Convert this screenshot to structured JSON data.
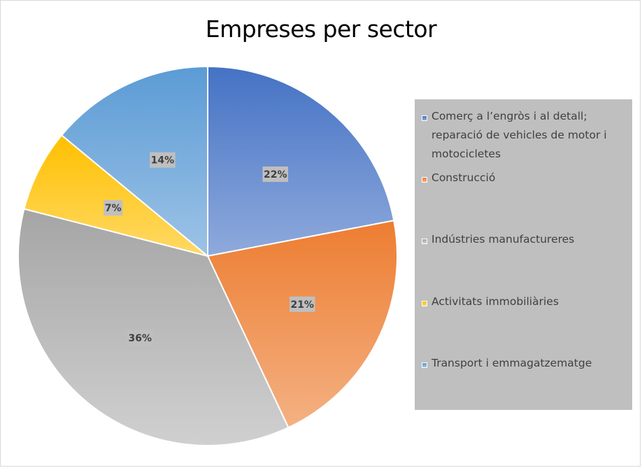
{
  "chart_data": {
    "type": "pie",
    "title": "Empreses per sector",
    "categories": [
      "Comerç a l’engròs i al detall; reparació de vehicles de motor i motocicletes",
      "Construcció",
      "Indústries manufactureres",
      "Activitats immobiliàries",
      "Transport i emmagatzematge"
    ],
    "values": [
      22,
      21,
      36,
      7,
      14
    ],
    "value_labels": [
      "22%",
      "21%",
      "36%",
      "7%",
      "14%"
    ],
    "legend_position": "right",
    "colors": [
      {
        "base": "#4472c4",
        "light": "#8faadc"
      },
      {
        "base": "#ed7d31",
        "light": "#f4b183"
      },
      {
        "base": "#a5a5a5",
        "light": "#d0d0d0"
      },
      {
        "base": "#ffc000",
        "light": "#ffd966"
      },
      {
        "base": "#5b9bd5",
        "light": "#9dc3e6"
      }
    ]
  }
}
